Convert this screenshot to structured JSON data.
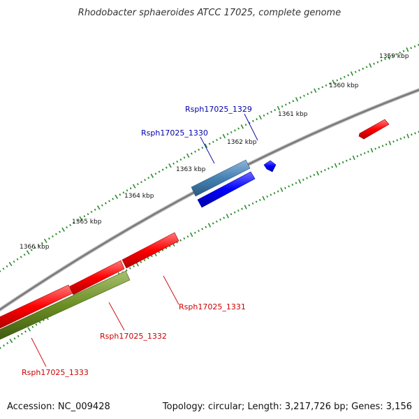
{
  "title": "Rhodobacter sphaeroides ATCC 17025, complete genome",
  "footer": {
    "accession": "Accession: NC_009428",
    "summary": "Topology: circular; Length: 3,217,726 bp; Genes: 3,156"
  },
  "scale_labels": [
    "1359 kbp",
    "1360 kbp",
    "1361 kbp",
    "1362 kbp",
    "1363 kbp",
    "1364 kbp",
    "1365 kbp",
    "1366 kbp"
  ],
  "gene_labels": {
    "rsph1329": "Rsph17025_1329",
    "rsph1330": "Rsph17025_1330",
    "rsph1331": "Rsph17025_1331",
    "rsph1332": "Rsph17025_1332",
    "rsph1333": "Rsph17025_1333"
  },
  "colors": {
    "backbone": "#808080",
    "forward_gene": "#ff0000",
    "reverse_gene": "#0000ff",
    "selected_gene": "#4682b4",
    "rna_gene": "#6b8e23",
    "tick": "#2e8b2e",
    "blue_label": "#0000aa",
    "red_label": "#cc0000"
  }
}
